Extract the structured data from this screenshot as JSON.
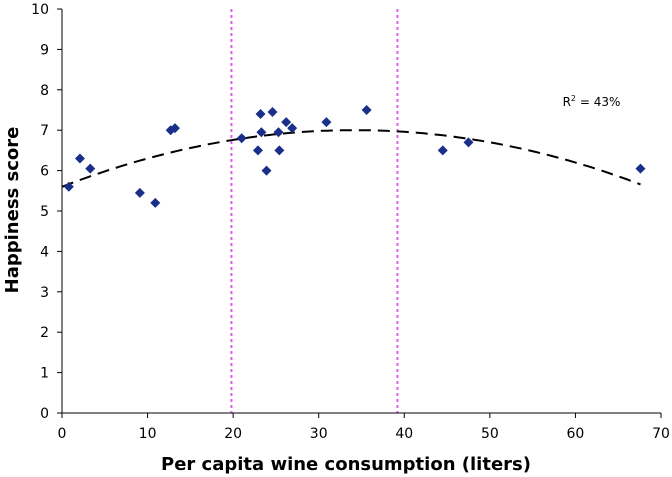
{
  "chart_data": {
    "type": "scatter",
    "xlabel": "Per capita wine consumption (liters)",
    "ylabel": "Happiness score",
    "xlim": [
      0,
      70
    ],
    "ylim": [
      0,
      10
    ],
    "xticks": [
      0,
      10,
      20,
      30,
      40,
      50,
      60,
      70
    ],
    "yticks": [
      0,
      1,
      2,
      3,
      4,
      5,
      6,
      7,
      8,
      9,
      10
    ],
    "grid": false,
    "legend": "none",
    "marker_color": "#1a2f8a",
    "points": [
      {
        "x": 0.8,
        "y": 5.6
      },
      {
        "x": 2.1,
        "y": 6.3
      },
      {
        "x": 3.3,
        "y": 6.05
      },
      {
        "x": 9.1,
        "y": 5.45
      },
      {
        "x": 10.9,
        "y": 5.2
      },
      {
        "x": 12.7,
        "y": 7.0
      },
      {
        "x": 13.2,
        "y": 7.05
      },
      {
        "x": 21.0,
        "y": 6.8
      },
      {
        "x": 22.9,
        "y": 6.5
      },
      {
        "x": 23.2,
        "y": 7.4
      },
      {
        "x": 23.3,
        "y": 6.95
      },
      {
        "x": 23.9,
        "y": 6.0
      },
      {
        "x": 24.6,
        "y": 7.45
      },
      {
        "x": 25.3,
        "y": 6.95
      },
      {
        "x": 25.4,
        "y": 6.5
      },
      {
        "x": 26.2,
        "y": 7.2
      },
      {
        "x": 26.9,
        "y": 7.05
      },
      {
        "x": 30.9,
        "y": 7.2
      },
      {
        "x": 35.6,
        "y": 7.5
      },
      {
        "x": 44.5,
        "y": 6.5
      },
      {
        "x": 47.5,
        "y": 6.7
      },
      {
        "x": 67.6,
        "y": 6.05
      }
    ],
    "trendline": {
      "type": "quadratic",
      "style": "dashed",
      "color": "#000000",
      "coefficients": {
        "a": -0.0012,
        "b": 0.082,
        "c": 5.6
      },
      "x_range": [
        0,
        67.6
      ],
      "label": "R",
      "label_sup": "2",
      "label_rest": " = 43%",
      "label_at": {
        "x": 58.5,
        "y": 7.6
      }
    },
    "vertical_lines": [
      {
        "x": 19.8,
        "color": "#e060e8",
        "style": "dotted"
      },
      {
        "x": 39.2,
        "color": "#e060e8",
        "style": "dotted"
      }
    ]
  }
}
